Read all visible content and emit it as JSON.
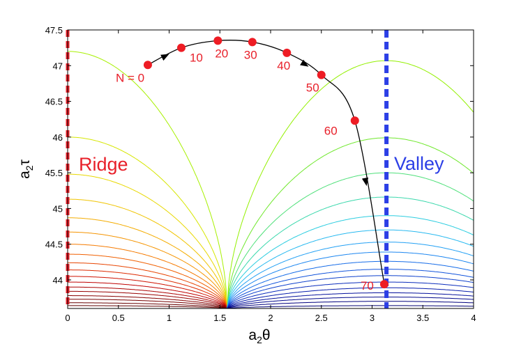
{
  "chart_data": {
    "type": "contour",
    "xlabel_main": "a",
    "xlabel_sub": "2",
    "xlabel_sym": "θ",
    "ylabel_main": "a",
    "ylabel_sub": "2",
    "ylabel_sym": "τ",
    "xlim": [
      0,
      4
    ],
    "ylim": [
      43.6,
      47.5
    ],
    "xticks": [
      "0",
      "0.5",
      "1",
      "1.5",
      "2",
      "2.5",
      "3",
      "3.5",
      "4"
    ],
    "xtick_values": [
      0,
      0.5,
      1,
      1.5,
      2,
      2.5,
      3,
      3.5,
      4
    ],
    "yticks": [
      "44",
      "44.5",
      "45",
      "45.5",
      "46",
      "46.5",
      "47",
      "47.5"
    ],
    "ytick_values": [
      44,
      44.5,
      45,
      45.5,
      46,
      46.5,
      47,
      47.5
    ],
    "ridge": {
      "label": "Ridge",
      "x": 0,
      "color": "#e8202a"
    },
    "valley": {
      "label": "Valley",
      "x": 3.1416,
      "color": "#2c3fe6"
    },
    "trajectory": {
      "points": [
        {
          "label": "N = 0",
          "x": 0.79,
          "y": 47.01
        },
        {
          "label": "10",
          "x": 1.12,
          "y": 47.25
        },
        {
          "label": "20",
          "x": 1.48,
          "y": 47.35
        },
        {
          "label": "30",
          "x": 1.82,
          "y": 47.33
        },
        {
          "label": "40",
          "x": 2.16,
          "y": 47.18
        },
        {
          "label": "50",
          "x": 2.5,
          "y": 46.87
        },
        {
          "label": "60",
          "x": 2.83,
          "y": 46.23
        },
        {
          "label": "70",
          "x": 3.12,
          "y": 43.94
        }
      ],
      "point_color": "#ee1c24",
      "label_color": "#e8202a"
    },
    "contours": {
      "ridge_heights": [
        47.2,
        46.0,
        45.48,
        45.13,
        44.87,
        44.67,
        44.5,
        44.36,
        44.24,
        44.14,
        44.05,
        43.97,
        43.9,
        43.84,
        43.78,
        43.73,
        43.68,
        43.64
      ],
      "valley_heights": [
        47.07,
        45.99,
        45.5,
        45.16,
        44.9,
        44.7,
        44.53,
        44.39,
        44.26,
        44.15,
        44.06,
        43.97,
        43.89,
        43.82,
        43.76,
        43.7,
        43.64
      ],
      "ridge_colors": [
        "#a7f000",
        "#d6e600",
        "#e8d800",
        "#f0c400",
        "#f4ac00",
        "#f59400",
        "#f57a00",
        "#f05f00",
        "#e84400",
        "#dd2a00",
        "#cf1200",
        "#bf0000",
        "#ab0000",
        "#980000",
        "#860000",
        "#760000",
        "#680000",
        "#5c0000"
      ],
      "valley_colors": [
        "#93f000",
        "#6fe82c",
        "#4fe07a",
        "#3ad8ac",
        "#2ccde0",
        "#28b9f0",
        "#22a0f4",
        "#1c86f0",
        "#166ce8",
        "#1254dc",
        "#0e40cc",
        "#0a2cbc",
        "#061cac",
        "#04109c",
        "#02088c",
        "#00007e",
        "#000070"
      ]
    }
  }
}
